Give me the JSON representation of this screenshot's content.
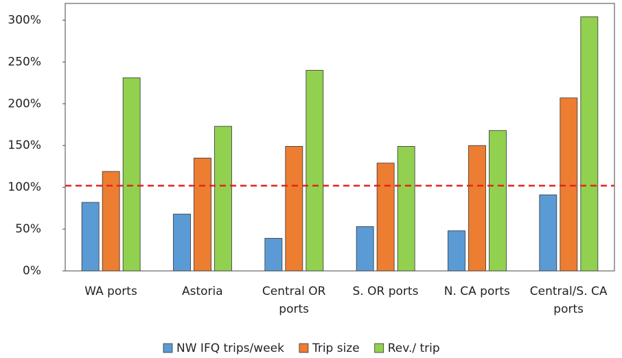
{
  "chart_data": {
    "type": "bar",
    "categories": [
      "WA ports",
      "Astoria",
      "Central OR ports",
      "S. OR ports",
      "N. CA ports",
      "Central/S. CA ports"
    ],
    "series": [
      {
        "name": "NW IFQ trips/week",
        "color": "#5b9bd5",
        "values": [
          82,
          68,
          39,
          53,
          48,
          91
        ]
      },
      {
        "name": "Trip size",
        "color": "#ed7d31",
        "values": [
          119,
          135,
          149,
          129,
          150,
          207
        ]
      },
      {
        "name": "Rev./ trip",
        "color": "#92d050",
        "values": [
          231,
          173,
          240,
          149,
          168,
          304
        ]
      }
    ],
    "ylim": [
      0,
      320
    ],
    "yticks": [
      {
        "value": 0,
        "label": "0%"
      },
      {
        "value": 50,
        "label": "50%"
      },
      {
        "value": 100,
        "label": "100%"
      },
      {
        "value": 150,
        "label": "150%"
      },
      {
        "value": 200,
        "label": "200%"
      },
      {
        "value": 250,
        "label": "250%"
      },
      {
        "value": 300,
        "label": "300%"
      }
    ],
    "reference_line": {
      "value": 102,
      "color": "#e8211d"
    },
    "legend": "bottom"
  }
}
